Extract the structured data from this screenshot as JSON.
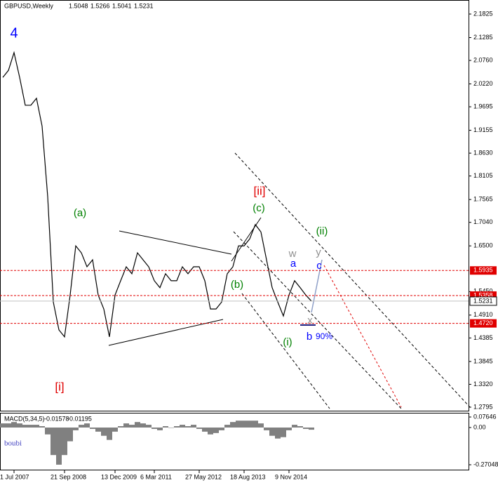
{
  "chart_data": [
    {
      "type": "line",
      "ohlc": [
        1.5048,
        1.5266,
        1.5041,
        1.5231
      ],
      "categories": [
        null,
        null,
        "1 Jul 2007",
        null,
        null,
        null,
        null,
        null,
        null,
        null,
        null,
        "21 Sep 2008",
        null,
        null,
        null,
        null,
        null,
        null,
        null,
        null,
        "13 Dec 2009",
        null,
        null,
        null,
        null,
        null,
        null,
        "6 Mar 2011",
        null,
        null,
        null,
        null,
        null,
        null,
        null,
        "27 May 2012",
        null,
        null,
        null,
        null,
        null,
        null,
        null,
        "18 Aug 2013",
        null,
        null,
        null,
        null,
        null,
        null,
        null,
        "9 Nov 2014",
        null,
        null,
        null,
        null
      ],
      "series": [
        {
          "name": "GBPUSD,Weekly",
          "color": "#000000",
          "values": [
            2.037,
            2.053,
            2.094,
            2.037,
            1.973,
            1.973,
            1.989,
            1.925,
            1.763,
            1.521,
            1.457,
            1.441,
            1.537,
            1.65,
            1.634,
            1.602,
            1.618,
            1.537,
            1.505,
            1.441,
            1.537,
            1.57,
            1.602,
            1.586,
            1.634,
            1.618,
            1.602,
            1.57,
            1.554,
            1.586,
            1.57,
            1.57,
            1.602,
            1.586,
            1.602,
            1.602,
            1.57,
            1.505,
            1.505,
            1.521,
            1.586,
            1.602,
            1.65,
            1.65,
            1.666,
            1.699,
            1.682,
            1.618,
            1.554,
            1.521,
            1.489,
            1.537,
            1.57,
            1.554,
            1.537,
            1.5231
          ]
        }
      ],
      "ylim": [
        1.2795,
        2.1825
      ],
      "yticks": [
        2.1825,
        2.1285,
        {
          "value": 2.076,
          "label": "2.0760"
        },
        {
          "value": 2.022,
          "label": "2.0220"
        },
        1.9695,
        1.9155,
        {
          "value": 1.863,
          "label": "1.8630"
        },
        1.8105,
        1.7565,
        {
          "value": 1.704,
          "label": "1.7040"
        },
        {
          "value": 1.65,
          "label": "1.6500"
        },
        {
          "value": 1.545,
          "label": "1.5450"
        },
        {
          "value": 1.491,
          "label": "1.4910"
        },
        1.4385,
        1.3845,
        {
          "value": 1.332,
          "label": "1.3320"
        },
        1.2795
      ],
      "levels": [
        {
          "value": 1.5935,
          "color": "#e00000"
        },
        {
          "value": 1.5358,
          "color": "#e00000"
        },
        {
          "value": {
            "value": 1.472,
            "label": "1.4720"
          },
          "color": "#e00000"
        }
      ],
      "current": 1.5231,
      "grid": false,
      "annotations": [
        {
          "text": "4",
          "color": "#0000ff"
        },
        {
          "text": "[i]",
          "color": "#e00000"
        },
        {
          "text": "(a)",
          "color": "#008000"
        },
        {
          "text": "[ii]",
          "color": "#e00000"
        },
        {
          "text": "(c)",
          "color": "#008000"
        },
        {
          "text": "(b)",
          "color": "#008000"
        },
        {
          "text": "(ii)",
          "color": "#008000"
        },
        {
          "text": "w",
          "color": "#909090"
        },
        {
          "text": "a",
          "color": "#0000ff"
        },
        {
          "text": "y",
          "color": "#909090"
        },
        {
          "text": "c",
          "color": "#0000ff"
        },
        {
          "text": "x",
          "color": "#909090"
        },
        {
          "text": "b",
          "color": "#0000ff"
        },
        {
          "text": "90%",
          "color": "#0000ff"
        },
        {
          "text": "(i)",
          "color": "#008000"
        }
      ]
    },
    {
      "type": "bar",
      "title": "MACD(5,34,5)",
      "readings": [
        -0.01578,
        -0.01195
      ],
      "note": "boubi",
      "color": "#808080",
      "values": [
        0.03,
        0.03,
        0.04,
        0.03,
        0.02,
        0.02,
        0.02,
        0.01,
        -0.05,
        -0.2,
        -0.27,
        -0.2,
        -0.1,
        -0.02,
        0.02,
        0.03,
        -0.01,
        -0.03,
        -0.06,
        -0.09,
        -0.03,
        0.01,
        0.03,
        0.02,
        0.04,
        0.03,
        0.02,
        -0.01,
        -0.02,
        0.01,
        0.0,
        0.01,
        0.02,
        0.01,
        0.02,
        -0.01,
        -0.03,
        -0.05,
        -0.04,
        -0.02,
        0.02,
        0.04,
        0.05,
        0.05,
        0.05,
        0.05,
        0.03,
        -0.02,
        -0.06,
        -0.08,
        -0.07,
        -0.02,
        0.02,
        0.01,
        -0.01,
        -0.01578
      ],
      "ylim": [
        -0.27048,
        0.07646
      ],
      "yticks": [
        0.07646,
        {
          "value": 0,
          "label": "0.00"
        },
        -0.27048
      ]
    }
  ]
}
